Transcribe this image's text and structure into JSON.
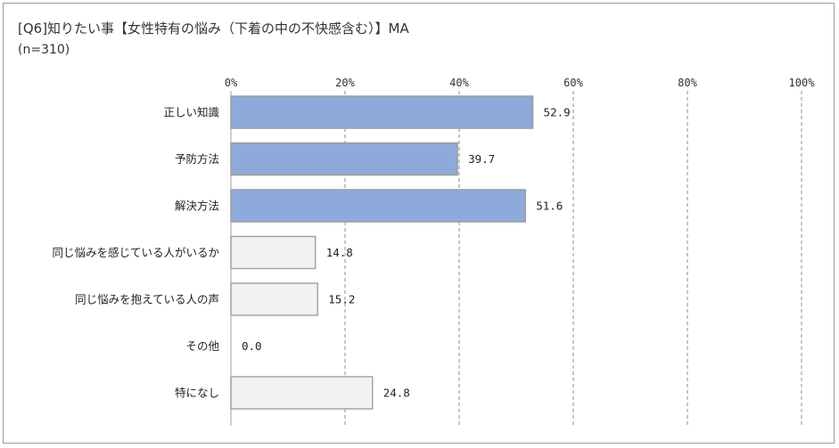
{
  "chart_data": {
    "type": "bar",
    "orientation": "horizontal",
    "title": "[Q6]知りたい事【女性特有の悩み（下着の中の不快感含む）】MA",
    "subtitle": "(n=310)",
    "categories": [
      "正しい知識",
      "予防方法",
      "解決方法",
      "同じ悩みを感じている人がいるか",
      "同じ悩みを抱えている人の声",
      "その他",
      "特になし"
    ],
    "values": [
      52.9,
      39.7,
      51.6,
      14.8,
      15.2,
      0.0,
      24.8
    ],
    "value_labels": [
      "52.9",
      "39.7",
      "51.6",
      "14.8",
      "15.2",
      "0.0",
      "24.8"
    ],
    "highlight": [
      true,
      true,
      true,
      false,
      false,
      false,
      false
    ],
    "xlim": [
      0,
      100
    ],
    "xticks": [
      "0%",
      "20%",
      "40%",
      "60%",
      "80%",
      "100%"
    ],
    "xtick_values": [
      0,
      20,
      40,
      60,
      80,
      100
    ],
    "grid": true,
    "colors": {
      "highlight_fill": "#8eaadb",
      "highlight_stroke": "#9c9c9c",
      "normal_fill": "#f2f2f2",
      "normal_stroke": "#a6a6a6",
      "grid": "#8c8c8c"
    }
  }
}
